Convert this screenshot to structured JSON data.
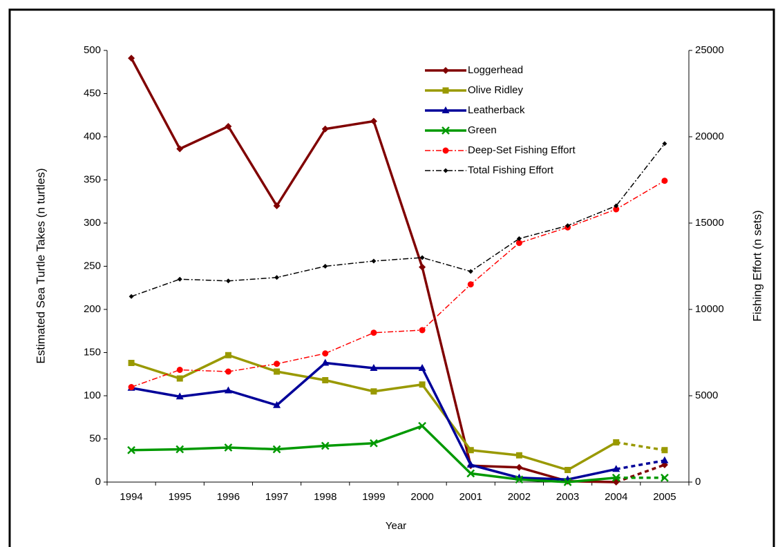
{
  "chart_data": {
    "type": "line",
    "xlabel": "Year",
    "ylabel": "Estimated Sea Turtle Takes (n turtles)",
    "y2label": "Fishing Effort (n sets)",
    "categories": [
      "1994",
      "1995",
      "1996",
      "1997",
      "1998",
      "1999",
      "2000",
      "2001",
      "2002",
      "2003",
      "2004",
      "2005"
    ],
    "ylim": [
      0,
      500
    ],
    "yticks": [
      0,
      50,
      100,
      150,
      200,
      250,
      300,
      350,
      400,
      450,
      500
    ],
    "y2lim": [
      0,
      25000
    ],
    "y2ticks": [
      0,
      5000,
      10000,
      15000,
      20000,
      25000
    ],
    "legend": "upper center",
    "grid": false,
    "series": [
      {
        "name": "Loggerhead",
        "color": "#800000",
        "marker": "diamond",
        "style": "solid",
        "dashed_from": "2004",
        "values": [
          491,
          386,
          412,
          320,
          409,
          418,
          249,
          19,
          17,
          1,
          0,
          20
        ]
      },
      {
        "name": "Olive Ridley",
        "color": "#999900",
        "marker": "square",
        "style": "solid",
        "dashed_from": "2004",
        "values": [
          138,
          120,
          147,
          128,
          118,
          105,
          113,
          37,
          31,
          14,
          46,
          37
        ]
      },
      {
        "name": "Leatherback",
        "color": "#000099",
        "marker": "triangle",
        "style": "solid",
        "dashed_from": "2004",
        "values": [
          109,
          99,
          106,
          89,
          138,
          132,
          132,
          20,
          5,
          3,
          15,
          25
        ]
      },
      {
        "name": "Green",
        "color": "#009900",
        "marker": "x",
        "style": "solid",
        "dashed_from": "2004",
        "values": [
          37,
          38,
          40,
          38,
          42,
          45,
          65,
          10,
          3,
          0,
          5,
          5
        ]
      },
      {
        "name": "Deep-Set Fishing Effort",
        "color": "#ff0000",
        "marker": "circle",
        "style": "dashdot",
        "axis": "y2",
        "values": [
          5500,
          6500,
          6400,
          6850,
          7450,
          8650,
          8800,
          11450,
          13850,
          14750,
          15800,
          17450
        ]
      },
      {
        "name": "Total Fishing Effort",
        "color": "#000000",
        "marker": "smalldiamond",
        "style": "dashdot",
        "axis": "y2",
        "values": [
          10750,
          11750,
          11650,
          11850,
          12500,
          12800,
          13000,
          12200,
          14100,
          14850,
          16000,
          19600
        ]
      }
    ]
  }
}
